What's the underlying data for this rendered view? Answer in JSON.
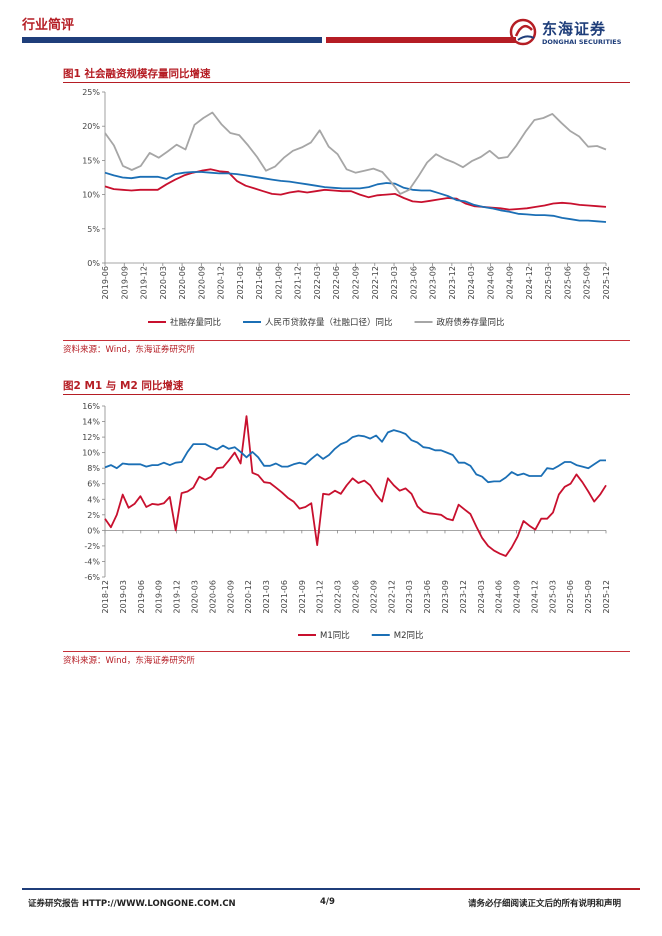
{
  "header": {
    "section": "行业简评",
    "logo_cn": "东海证券",
    "logo_en": "DONGHAI SECURITIES"
  },
  "figures": [
    {
      "title": "图1  社会融资规模存量同比增速",
      "source": "资料来源：Wind，东海证券研究所"
    },
    {
      "title": "图2  M1 与 M2 同比增速",
      "source": "资料来源：Wind，东海证券研究所"
    }
  ],
  "chart_data": [
    {
      "type": "line",
      "title": "图1  社会融资规模存量同比增速",
      "ylim": [
        0,
        25
      ],
      "yticks": [
        0,
        5,
        10,
        15,
        20,
        25
      ],
      "ytick_format": "percent",
      "x_tick_labels": [
        "2019-06",
        "2019-09",
        "2019-12",
        "2020-03",
        "2020-06",
        "2020-09",
        "2020-12",
        "2021-03",
        "2021-06",
        "2021-09",
        "2021-12",
        "2022-03",
        "2022-06",
        "2022-09",
        "2022-12",
        "2023-03",
        "2023-06",
        "2023-09",
        "2023-12",
        "2024-03",
        "2024-06",
        "2024-09",
        "2024-12",
        "2025-03",
        "2025-06",
        "2025-09",
        "2025-12"
      ],
      "legend_position": "bottom",
      "grid": false,
      "series": [
        {
          "name": "社融存量同比",
          "color": "#c8102e",
          "values": [
            11.2,
            10.8,
            10.7,
            10.6,
            10.7,
            10.7,
            10.7,
            11.5,
            12.2,
            12.8,
            13.2,
            13.5,
            13.7,
            13.4,
            13.3,
            12.0,
            11.3,
            10.9,
            10.5,
            10.1,
            10.0,
            10.3,
            10.5,
            10.3,
            10.5,
            10.7,
            10.6,
            10.5,
            10.5,
            10.0,
            9.6,
            9.9,
            10.0,
            10.1,
            9.5,
            9.0,
            8.9,
            9.1,
            9.3,
            9.5,
            9.4,
            8.7,
            8.3,
            8.2,
            8.1,
            8.0,
            7.8,
            7.9,
            8.0,
            8.2,
            8.4,
            8.7,
            8.8,
            8.7,
            8.5,
            8.4,
            8.3,
            8.2
          ]
        },
        {
          "name": "人民币贷款存量（社融口径）同比",
          "color": "#1b6fb5",
          "values": [
            13.2,
            12.8,
            12.5,
            12.4,
            12.6,
            12.6,
            12.6,
            12.3,
            13.0,
            13.2,
            13.3,
            13.3,
            13.2,
            13.1,
            13.1,
            13.0,
            12.8,
            12.6,
            12.4,
            12.2,
            12.0,
            11.9,
            11.7,
            11.5,
            11.3,
            11.1,
            11.0,
            10.9,
            10.9,
            10.9,
            11.1,
            11.5,
            11.7,
            11.6,
            11.0,
            10.7,
            10.6,
            10.6,
            10.2,
            9.8,
            9.2,
            9.0,
            8.5,
            8.2,
            8.0,
            7.7,
            7.5,
            7.2,
            7.1,
            7.0,
            7.0,
            6.9,
            6.6,
            6.4,
            6.2,
            6.2,
            6.1,
            6.0
          ]
        },
        {
          "name": "政府债券存量同比",
          "color": "#a6a6a6",
          "values": [
            19.0,
            17.2,
            14.2,
            13.6,
            14.2,
            16.1,
            15.4,
            16.3,
            17.3,
            16.6,
            20.2,
            21.2,
            22.0,
            20.3,
            19.0,
            18.7,
            17.2,
            15.5,
            13.5,
            14.1,
            15.4,
            16.4,
            16.9,
            17.6,
            19.4,
            17.0,
            15.9,
            13.7,
            13.2,
            13.5,
            13.8,
            13.3,
            11.8,
            10.1,
            10.7,
            12.6,
            14.7,
            15.9,
            15.2,
            14.7,
            14.0,
            14.9,
            15.5,
            16.4,
            15.3,
            15.5,
            17.2,
            19.2,
            20.9,
            21.2,
            21.8,
            20.5,
            19.3,
            18.5,
            17.0,
            17.1,
            16.6
          ]
        }
      ]
    },
    {
      "type": "line",
      "title": "图2  M1 与 M2 同比增速",
      "ylim": [
        -6,
        16
      ],
      "yticks": [
        -6,
        -4,
        -2,
        0,
        2,
        4,
        6,
        8,
        10,
        12,
        14,
        16
      ],
      "ytick_format": "percent",
      "x_tick_labels": [
        "2018-12",
        "2019-03",
        "2019-06",
        "2019-09",
        "2019-12",
        "2020-03",
        "2020-06",
        "2020-09",
        "2020-12",
        "2021-03",
        "2021-06",
        "2021-09",
        "2021-12",
        "2022-03",
        "2022-06",
        "2022-09",
        "2022-12",
        "2023-03",
        "2023-06",
        "2023-09",
        "2023-12",
        "2024-03",
        "2024-06",
        "2024-09",
        "2024-12",
        "2025-03",
        "2025-06",
        "2025-09",
        "2025-12"
      ],
      "legend_position": "bottom",
      "grid": false,
      "series": [
        {
          "name": "M1同比",
          "color": "#c8102e",
          "values": [
            1.5,
            0.4,
            2.0,
            4.6,
            2.9,
            3.4,
            4.4,
            3.0,
            3.4,
            3.3,
            3.5,
            4.3,
            0.0,
            4.8,
            5.0,
            5.5,
            6.9,
            6.5,
            6.9,
            8.0,
            8.1,
            9.0,
            10.0,
            8.6,
            14.7,
            7.4,
            7.1,
            6.2,
            6.1,
            5.5,
            4.9,
            4.2,
            3.7,
            2.8,
            3.0,
            3.5,
            -1.9,
            4.7,
            4.6,
            5.1,
            4.7,
            5.8,
            6.7,
            6.1,
            6.4,
            5.8,
            4.6,
            3.7,
            6.7,
            5.8,
            5.1,
            5.4,
            4.7,
            3.1,
            2.4,
            2.2,
            2.1,
            2.0,
            1.5,
            1.3,
            3.3,
            2.7,
            2.1,
            0.5,
            -1.0,
            -2.0,
            -2.6,
            -3.0,
            -3.3,
            -2.2,
            -0.8,
            1.2,
            0.6,
            0.1,
            1.5,
            1.5,
            2.3,
            4.6,
            5.6,
            6.0,
            7.2,
            6.2,
            5.0,
            3.7,
            4.6,
            5.8
          ]
        },
        {
          "name": "M2同比",
          "color": "#1b6fb5",
          "values": [
            8.1,
            8.4,
            8.0,
            8.6,
            8.5,
            8.5,
            8.5,
            8.2,
            8.4,
            8.4,
            8.7,
            8.4,
            8.7,
            8.8,
            10.1,
            11.1,
            11.1,
            11.1,
            10.7,
            10.4,
            10.9,
            10.5,
            10.7,
            10.1,
            9.4,
            10.1,
            9.4,
            8.3,
            8.3,
            8.6,
            8.2,
            8.2,
            8.5,
            8.7,
            8.5,
            9.2,
            9.8,
            9.2,
            9.7,
            10.5,
            11.1,
            11.4,
            12.0,
            12.2,
            12.1,
            11.8,
            12.2,
            11.4,
            12.6,
            12.9,
            12.7,
            12.4,
            11.6,
            11.3,
            10.7,
            10.6,
            10.3,
            10.3,
            10.0,
            9.7,
            8.7,
            8.7,
            8.3,
            7.2,
            6.9,
            6.2,
            6.3,
            6.3,
            6.8,
            7.5,
            7.1,
            7.3,
            7.0,
            7.0,
            7.0,
            8.0,
            7.9,
            8.3,
            8.8,
            8.8,
            8.4,
            8.2,
            8.0,
            8.5,
            9.0,
            9.0
          ]
        }
      ]
    }
  ],
  "footer": {
    "left": "证券研究报告    HTTP://WWW.LONGONE.COM.CN",
    "page": "4/9",
    "right": "请务必仔细阅读正文后的所有说明和声明"
  }
}
